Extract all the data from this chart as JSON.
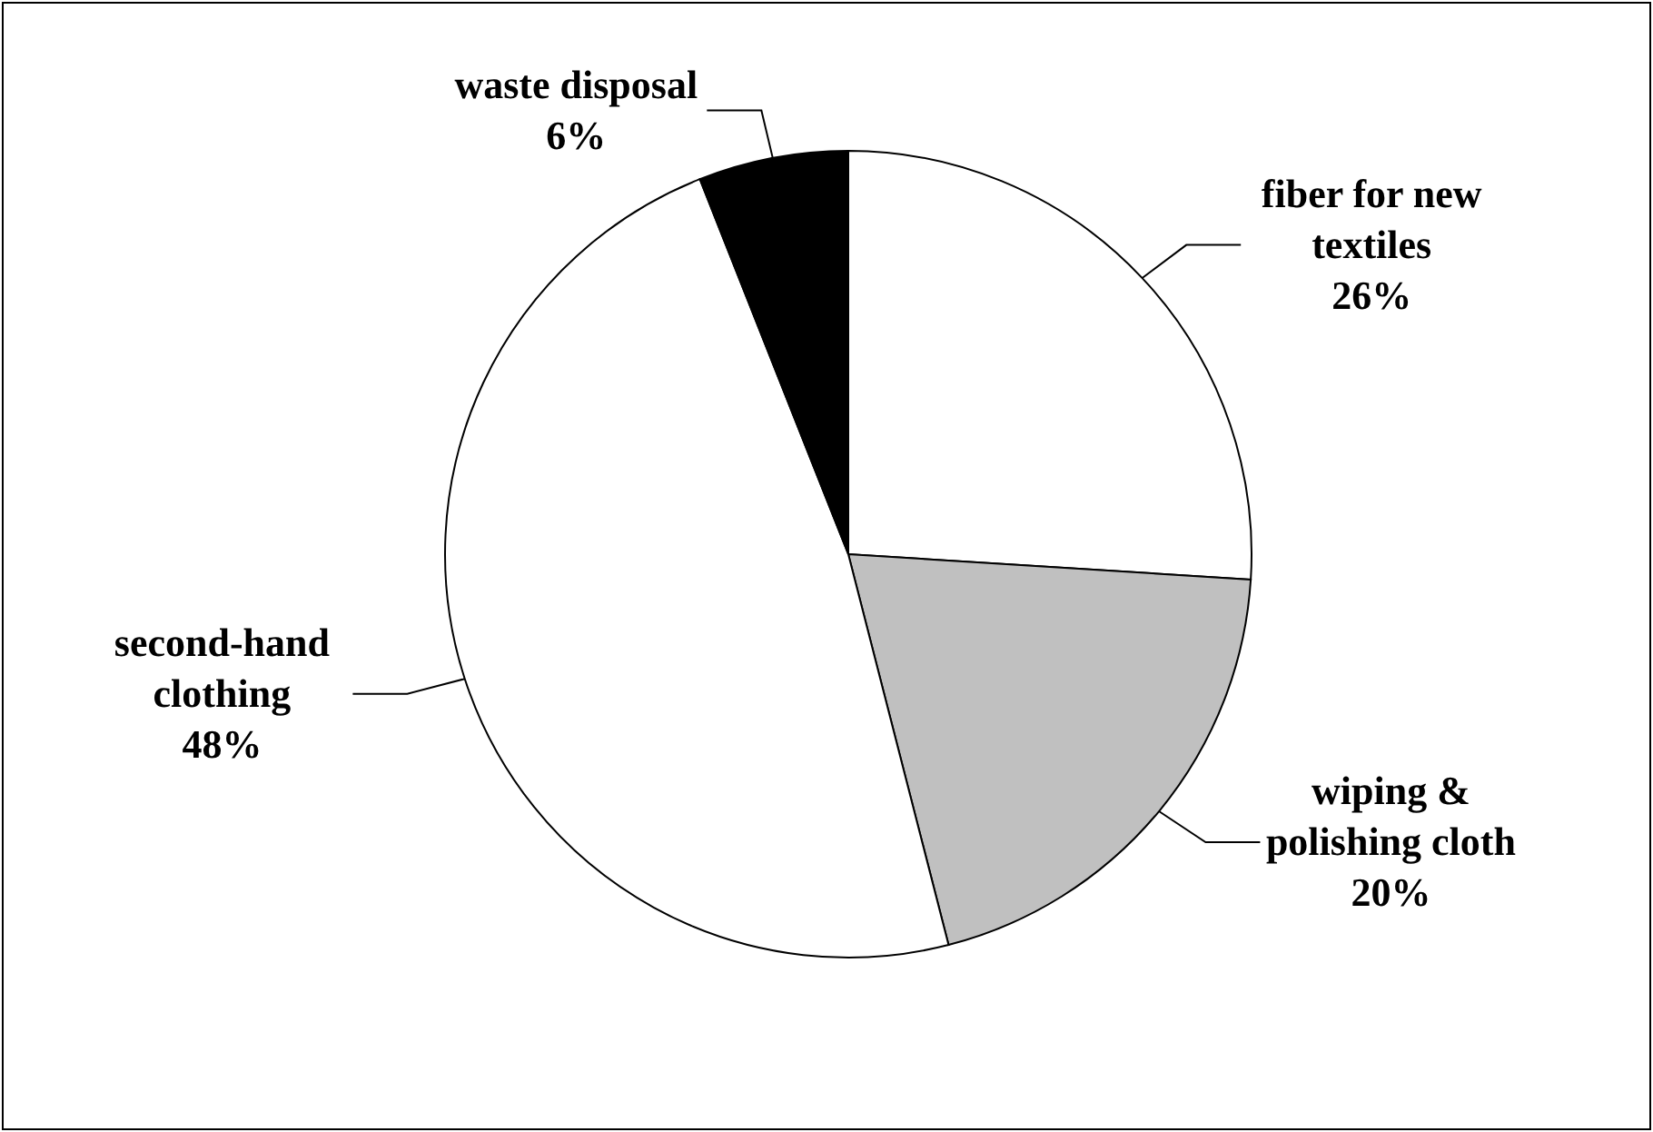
{
  "chart_data": {
    "type": "pie",
    "categories": [
      "fiber for new textiles",
      "wiping & polishing cloth",
      "second-hand clothing",
      "waste disposal"
    ],
    "values": [
      26,
      20,
      48,
      6
    ],
    "colors": [
      "#ffffff",
      "#c0c0c0",
      "#ffffff",
      "#000000"
    ],
    "value_labels": [
      "26%",
      "20%",
      "48%",
      "6%"
    ]
  }
}
